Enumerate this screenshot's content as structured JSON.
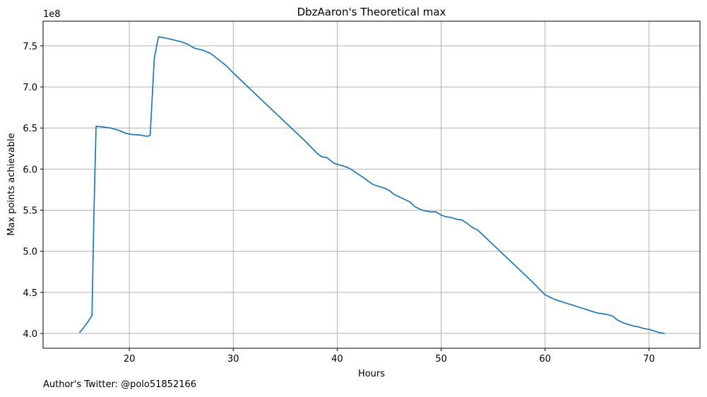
{
  "footer": {
    "note": "Author's Twitter: @polo51852166"
  },
  "chart_data": {
    "type": "line",
    "title": "DbzAaron's Theoretical max",
    "xlabel": "Hours",
    "ylabel": "Max points achievable",
    "y_offset_label": "1e8",
    "xlim": [
      11.7,
      74.9
    ],
    "ylim": [
      3.82,
      7.8
    ],
    "x_ticks": [
      20,
      30,
      40,
      50,
      60,
      70
    ],
    "x_tick_labels": [
      "20",
      "30",
      "40",
      "50",
      "60",
      "70"
    ],
    "y_ticks": [
      4.0,
      4.5,
      5.0,
      5.5,
      6.0,
      6.5,
      7.0,
      7.5
    ],
    "y_tick_labels": [
      "4.0",
      "4.5",
      "5.0",
      "5.5",
      "6.0",
      "6.5",
      "7.0",
      "7.5"
    ],
    "grid": true,
    "line_color": "#1f77b4",
    "series": [
      {
        "x": [
          15.2,
          15.6,
          16.0,
          16.4,
          16.6,
          16.8,
          17.3,
          18.2,
          19.0,
          19.7,
          20.3,
          21.0,
          21.7,
          22.0,
          22.4,
          22.8,
          23.3,
          24.0,
          25.0,
          25.6,
          26.3,
          27.0,
          27.8,
          28.5,
          29.3,
          30.0,
          31.0,
          32.0,
          33.0,
          34.0,
          35.0,
          36.0,
          37.0,
          38.0,
          38.5,
          39.0,
          39.3,
          39.7,
          40.0,
          40.5,
          41.0,
          41.3,
          42.0,
          42.6,
          43.0,
          43.5,
          44.0,
          44.5,
          45.0,
          45.5,
          46.0,
          46.5,
          47.0,
          47.5,
          48.0,
          48.5,
          49.0,
          49.5,
          50.0,
          50.5,
          51.0,
          51.5,
          52.0,
          52.5,
          53.0,
          53.5,
          54.0,
          55.0,
          56.0,
          57.0,
          58.0,
          59.0,
          59.6,
          60.0,
          60.5,
          61.0,
          61.5,
          62.0,
          62.5,
          63.0,
          63.5,
          64.0,
          64.5,
          65.0,
          65.5,
          66.0,
          66.5,
          67.0,
          67.5,
          68.0,
          68.5,
          69.0,
          69.5,
          70.0,
          70.5,
          71.0,
          71.5
        ],
        "y": [
          4.01,
          4.07,
          4.14,
          4.22,
          5.5,
          6.52,
          6.515,
          6.5,
          6.47,
          6.435,
          6.42,
          6.415,
          6.4,
          6.41,
          7.35,
          7.61,
          7.6,
          7.58,
          7.55,
          7.52,
          7.47,
          7.45,
          7.41,
          7.34,
          7.26,
          7.17,
          7.05,
          6.93,
          6.81,
          6.69,
          6.57,
          6.45,
          6.33,
          6.2,
          6.15,
          6.14,
          6.11,
          6.07,
          6.06,
          6.04,
          6.02,
          6.0,
          5.94,
          5.89,
          5.85,
          5.81,
          5.79,
          5.77,
          5.74,
          5.69,
          5.66,
          5.63,
          5.6,
          5.54,
          5.51,
          5.49,
          5.48,
          5.48,
          5.44,
          5.42,
          5.41,
          5.39,
          5.38,
          5.34,
          5.29,
          5.26,
          5.2,
          5.08,
          4.96,
          4.84,
          4.72,
          4.6,
          4.52,
          4.47,
          4.44,
          4.41,
          4.39,
          4.37,
          4.35,
          4.33,
          4.31,
          4.29,
          4.27,
          4.25,
          4.24,
          4.23,
          4.21,
          4.16,
          4.13,
          4.11,
          4.09,
          4.08,
          4.06,
          4.05,
          4.03,
          4.01,
          4.0
        ]
      }
    ]
  }
}
